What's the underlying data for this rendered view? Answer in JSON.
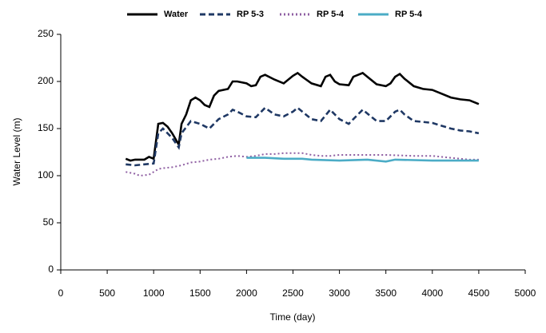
{
  "chart_data": {
    "type": "line",
    "xlabel": "Time (day)",
    "ylabel": "Water Level (m)",
    "xlim": [
      0,
      5000
    ],
    "xticks": [
      0,
      500,
      1000,
      1500,
      2000,
      2500,
      3000,
      3500,
      4000,
      4500,
      5000
    ],
    "ylim": [
      0,
      250
    ],
    "yticks": [
      0,
      50,
      100,
      150,
      200,
      250
    ],
    "grid": false,
    "legend": "top",
    "series": [
      {
        "name": "Water",
        "color": "#000000",
        "style": "solid",
        "x": [
          700,
          750,
          800,
          900,
          950,
          1000,
          1050,
          1100,
          1150,
          1200,
          1270,
          1300,
          1350,
          1400,
          1450,
          1500,
          1550,
          1600,
          1650,
          1700,
          1800,
          1850,
          1900,
          2000,
          2050,
          2100,
          2150,
          2200,
          2300,
          2400,
          2500,
          2550,
          2600,
          2700,
          2800,
          2850,
          2900,
          2950,
          3000,
          3100,
          3150,
          3250,
          3300,
          3400,
          3500,
          3550,
          3600,
          3650,
          3700,
          3800,
          3900,
          4000,
          4100,
          4200,
          4300,
          4400,
          4500
        ],
        "values": [
          118,
          116,
          117,
          117,
          120,
          118,
          155,
          156,
          152,
          145,
          133,
          155,
          165,
          180,
          183,
          180,
          175,
          173,
          185,
          190,
          192,
          200,
          200,
          198,
          195,
          196,
          205,
          207,
          202,
          198,
          206,
          209,
          205,
          198,
          195,
          205,
          207,
          200,
          197,
          196,
          205,
          209,
          205,
          197,
          195,
          198,
          205,
          208,
          203,
          195,
          192,
          191,
          187,
          183,
          181,
          180,
          176
        ]
      },
      {
        "name": "RP 5-3",
        "color": "#1f3864",
        "style": "dashed",
        "x": [
          700,
          800,
          900,
          1000,
          1050,
          1100,
          1150,
          1200,
          1270,
          1300,
          1400,
          1500,
          1600,
          1700,
          1800,
          1850,
          1900,
          2000,
          2100,
          2200,
          2300,
          2400,
          2500,
          2550,
          2600,
          2700,
          2800,
          2900,
          3000,
          3100,
          3200,
          3250,
          3300,
          3400,
          3500,
          3600,
          3650,
          3700,
          3800,
          3900,
          4000,
          4100,
          4200,
          4300,
          4400,
          4500
        ],
        "values": [
          112,
          111,
          112,
          113,
          145,
          150,
          145,
          140,
          130,
          145,
          158,
          155,
          150,
          160,
          165,
          170,
          168,
          163,
          162,
          172,
          165,
          163,
          168,
          172,
          168,
          160,
          158,
          170,
          160,
          155,
          165,
          170,
          166,
          158,
          158,
          168,
          170,
          165,
          158,
          157,
          156,
          153,
          150,
          148,
          147,
          145
        ]
      },
      {
        "name": "RP 5-4",
        "color": "#8e5ea2",
        "style": "dotted",
        "x": [
          700,
          800,
          850,
          950,
          1000,
          1050,
          1100,
          1200,
          1300,
          1400,
          1500,
          1600,
          1700,
          1800,
          1900,
          2000,
          2100,
          2200,
          2300,
          2400,
          2500,
          2600,
          2700,
          2800,
          2900,
          3000,
          3200,
          3500,
          3800,
          4000,
          4200,
          4400,
          4500
        ],
        "values": [
          104,
          102,
          100,
          101,
          104,
          107,
          108,
          109,
          111,
          114,
          115,
          117,
          118,
          120,
          121,
          120,
          121,
          123,
          123,
          124,
          124,
          124,
          122,
          121,
          121,
          122,
          122,
          122,
          121,
          121,
          119,
          117,
          117
        ]
      },
      {
        "name": "RP 5-4",
        "color": "#4bacc6",
        "style": "solid",
        "x": [
          2000,
          2200,
          2400,
          2600,
          2700,
          3000,
          3300,
          3500,
          3600,
          4000,
          4500
        ],
        "values": [
          119,
          119,
          118,
          118,
          117,
          116,
          117,
          115,
          117,
          116,
          116
        ]
      }
    ]
  }
}
